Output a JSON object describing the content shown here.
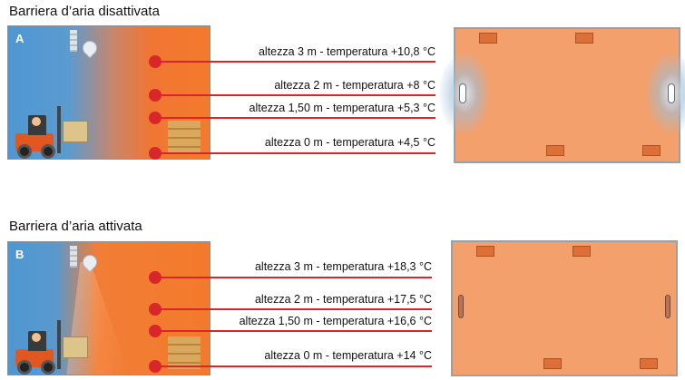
{
  "section_a": {
    "title": "Barriera d’aria disattivata",
    "letter": "A",
    "labels": [
      "altezza 3 m - temperatura +10,8 °C",
      "altezza 2 m - temperatura +8 °C",
      "altezza 1,50 m - temperatura +5,3 °C",
      "altezza 0 m - temperatura +4,5 °C"
    ]
  },
  "section_b": {
    "title": "Barriera d’aria attivata",
    "letter": "B",
    "labels": [
      "altezza 3 m - temperatura +18,3 °C",
      "altezza 2 m - temperatura +17,5 °C",
      "altezza 1,50 m - temperatura +16,6 °C",
      "altezza 0 m - temperatura +14 °C"
    ]
  },
  "colors": {
    "marker": "#d9262b",
    "warm": "#f37a2c",
    "cold": "#4f97d3",
    "floor_plan": "#f3a06c"
  },
  "icons": [
    "forklift-icon",
    "location-pin-icon",
    "pallet-stack-icon",
    "air-curtain-icon",
    "heater-unit-icon"
  ]
}
